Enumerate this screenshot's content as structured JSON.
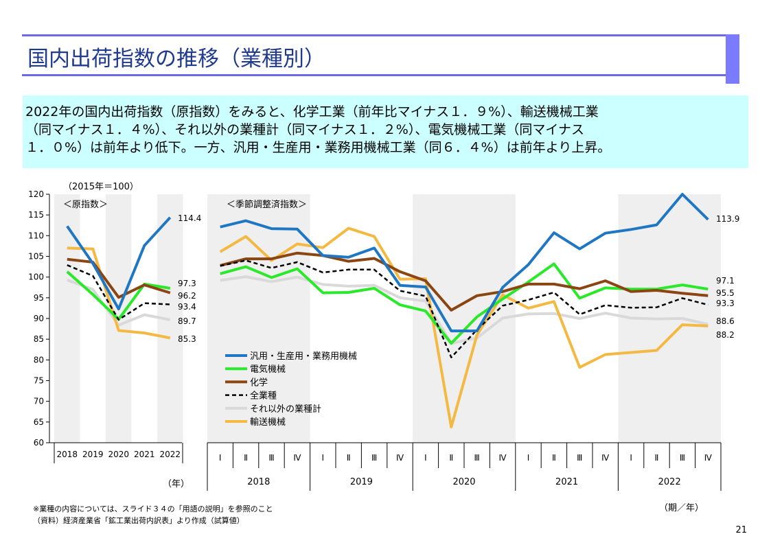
{
  "page": {
    "title": "国内出荷指数の推移（業種別）",
    "page_number": "21"
  },
  "summary": {
    "line1": "2022年の国内出荷指数（原指数）をみると、化学工業（前年比マイナス１．９%）、輸送機械工業",
    "line2": "（同マイナス１．４%）、それ以外の業種計（同マイナス１．２%）、電気機械工業（同マイナス",
    "line3": "１．０%）は前年より低下。一方、汎用・生産用・業務用機械工業（同６．４%）は前年より上昇。"
  },
  "notes": {
    "base": "（2015年＝100）",
    "left_panel": "＜原指数＞",
    "right_panel": "＜季節調整済指数＞",
    "year_unit": "（年）",
    "period_unit": "（期／年）",
    "footnote1": "※業種の内容については、スライド３４の「用語の説明」を参照のこと",
    "footnote2": "（資料）経済産業省「鉱工業出荷内訳表」より作成（試算値）"
  },
  "colors": {
    "general_machinery": "#1f77c4",
    "electrical": "#2ae82a",
    "chemical": "#8b4513",
    "all_industries": "#000000",
    "other": "#d9d9d9",
    "transport": "#f4b942",
    "shade": "#efefef"
  },
  "chart_data": {
    "type": "line",
    "ylim": [
      60,
      120
    ],
    "yticks": [
      "60",
      "65",
      "70",
      "75",
      "80",
      "85",
      "90",
      "95",
      "100",
      "105",
      "110",
      "115",
      "120"
    ],
    "annual": {
      "categories": [
        "2018",
        "2019",
        "2020",
        "2021",
        "2022"
      ],
      "series": [
        {
          "key": "general_machinery",
          "name": "汎用・生産用・業務用機械",
          "values": [
            112.3,
            103.3,
            92.3,
            107.6,
            114.4
          ],
          "end_label": "114.4"
        },
        {
          "key": "electrical",
          "name": "電気機械",
          "values": [
            101.3,
            95.8,
            89.8,
            98.3,
            97.3
          ],
          "end_label": "97.3"
        },
        {
          "key": "chemical",
          "name": "化学",
          "values": [
            104.3,
            103.6,
            95.1,
            98.1,
            96.2
          ],
          "end_label": "96.2"
        },
        {
          "key": "all_industries",
          "name": "全業種",
          "values": [
            102.9,
            100.3,
            89.7,
            93.7,
            93.4
          ],
          "end_label": "93.4"
        },
        {
          "key": "other",
          "name": "それ以外の業種計",
          "values": [
            99.3,
            97.0,
            88.4,
            90.9,
            89.7
          ],
          "end_label": "89.7"
        },
        {
          "key": "transport",
          "name": "輸送機械",
          "values": [
            107.0,
            106.8,
            87.1,
            86.5,
            85.3
          ],
          "end_label": "85.3"
        }
      ]
    },
    "quarterly": {
      "quarters": [
        "Ⅰ",
        "Ⅱ",
        "Ⅲ",
        "Ⅳ",
        "Ⅰ",
        "Ⅱ",
        "Ⅲ",
        "Ⅳ",
        "Ⅰ",
        "Ⅱ",
        "Ⅲ",
        "Ⅳ",
        "Ⅰ",
        "Ⅱ",
        "Ⅲ",
        "Ⅳ",
        "Ⅰ",
        "Ⅱ",
        "Ⅲ",
        "Ⅳ"
      ],
      "years": [
        "2018",
        "2019",
        "2020",
        "2021",
        "2022"
      ],
      "series": [
        {
          "key": "general_machinery",
          "name": "汎用・生産用・業務用機械",
          "values": [
            112.1,
            113.6,
            111.7,
            111.6,
            105.2,
            104.8,
            107.0,
            98.0,
            97.6,
            87.0,
            87.0,
            97.5,
            103.0,
            110.7,
            106.8,
            110.6,
            111.5,
            112.6,
            120.0,
            113.9
          ],
          "end_label": "113.9"
        },
        {
          "key": "electrical",
          "name": "電気機械",
          "values": [
            100.8,
            102.5,
            99.9,
            102.0,
            96.2,
            96.3,
            97.3,
            93.3,
            91.8,
            84.0,
            90.4,
            94.7,
            98.8,
            103.2,
            94.9,
            97.4,
            97.1,
            97.1,
            98.1,
            97.1
          ],
          "end_label": "97.1"
        },
        {
          "key": "chemical",
          "name": "化学",
          "values": [
            102.8,
            104.4,
            104.4,
            105.8,
            105.2,
            103.8,
            104.5,
            101.3,
            99.1,
            92.0,
            95.5,
            96.5,
            98.3,
            98.3,
            97.2,
            99.1,
            96.5,
            96.8,
            96.1,
            95.5
          ],
          "end_label": "95.5"
        },
        {
          "key": "all_industries",
          "name": "全業種",
          "values": [
            102.7,
            104.0,
            102.2,
            103.6,
            101.1,
            101.8,
            101.8,
            96.7,
            95.4,
            80.6,
            87.3,
            93.1,
            94.5,
            96.3,
            91.0,
            93.2,
            92.6,
            92.7,
            94.9,
            93.3
          ],
          "end_label": "93.3"
        },
        {
          "key": "other",
          "name": "それ以外の業種計",
          "values": [
            99.2,
            100.1,
            98.9,
            100.0,
            98.2,
            97.8,
            98.0,
            95.0,
            94.2,
            84.0,
            85.3,
            90.1,
            91.1,
            91.2,
            90.0,
            91.3,
            90.1,
            89.9,
            90.0,
            88.6
          ],
          "end_label": "88.6"
        },
        {
          "key": "transport",
          "name": "輸送機械",
          "values": [
            106.1,
            109.8,
            104.0,
            108.0,
            107.1,
            111.8,
            109.8,
            99.5,
            99.6,
            63.8,
            86.0,
            95.7,
            92.5,
            94.1,
            78.2,
            81.3,
            81.8,
            82.3,
            88.5,
            88.2
          ],
          "end_label": "88.2"
        }
      ]
    },
    "legend_order": [
      "general_machinery",
      "electrical",
      "chemical",
      "all_industries",
      "other",
      "transport"
    ]
  }
}
